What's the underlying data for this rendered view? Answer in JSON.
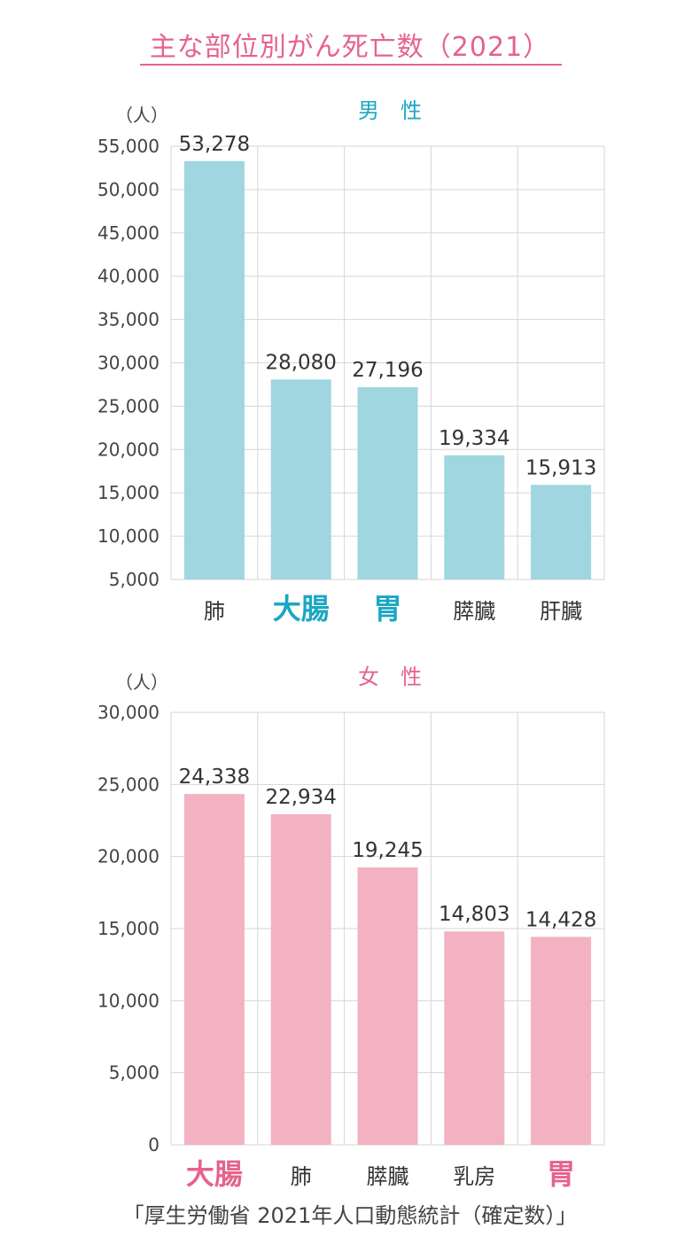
{
  "title": "主な部位別がん死亡数（2021）",
  "source": "「厚生労働省 2021年人口動態統計（確定数）」",
  "colors": {
    "title": "#e5638c",
    "male_bar": "#9fd6e0",
    "male_accent": "#1aa7c3",
    "female_bar": "#f2b2c1",
    "female_accent": "#e5638c",
    "grid": "#d6d6d6"
  },
  "chart_data": [
    {
      "type": "bar",
      "title": "男　性",
      "ylabel": "（人）",
      "ylim": [
        5000,
        55000
      ],
      "yticks": [
        5000,
        10000,
        15000,
        20000,
        25000,
        30000,
        35000,
        40000,
        45000,
        50000,
        55000
      ],
      "ytick_labels": [
        "5,000",
        "10,000",
        "15,000",
        "20,000",
        "25,000",
        "30,000",
        "35,000",
        "40,000",
        "45,000",
        "50,000",
        "55,000"
      ],
      "categories": [
        "肺",
        "大腸",
        "胃",
        "膵臓",
        "肝臓"
      ],
      "highlighted": [
        false,
        true,
        true,
        false,
        false
      ],
      "values": [
        53278,
        28080,
        27196,
        19334,
        15913
      ],
      "value_labels": [
        "53,278",
        "28,080",
        "27,196",
        "19,334",
        "15,913"
      ],
      "grid": true
    },
    {
      "type": "bar",
      "title": "女　性",
      "ylabel": "（人）",
      "ylim": [
        0,
        30000
      ],
      "yticks": [
        0,
        5000,
        10000,
        15000,
        20000,
        25000,
        30000
      ],
      "ytick_labels": [
        "0",
        "5,000",
        "10,000",
        "15,000",
        "20,000",
        "25,000",
        "30,000"
      ],
      "categories": [
        "大腸",
        "肺",
        "膵臓",
        "乳房",
        "胃"
      ],
      "highlighted": [
        true,
        false,
        false,
        false,
        true
      ],
      "values": [
        24338,
        22934,
        19245,
        14803,
        14428
      ],
      "value_labels": [
        "24,338",
        "22,934",
        "19,245",
        "14,803",
        "14,428"
      ],
      "grid": true
    }
  ]
}
